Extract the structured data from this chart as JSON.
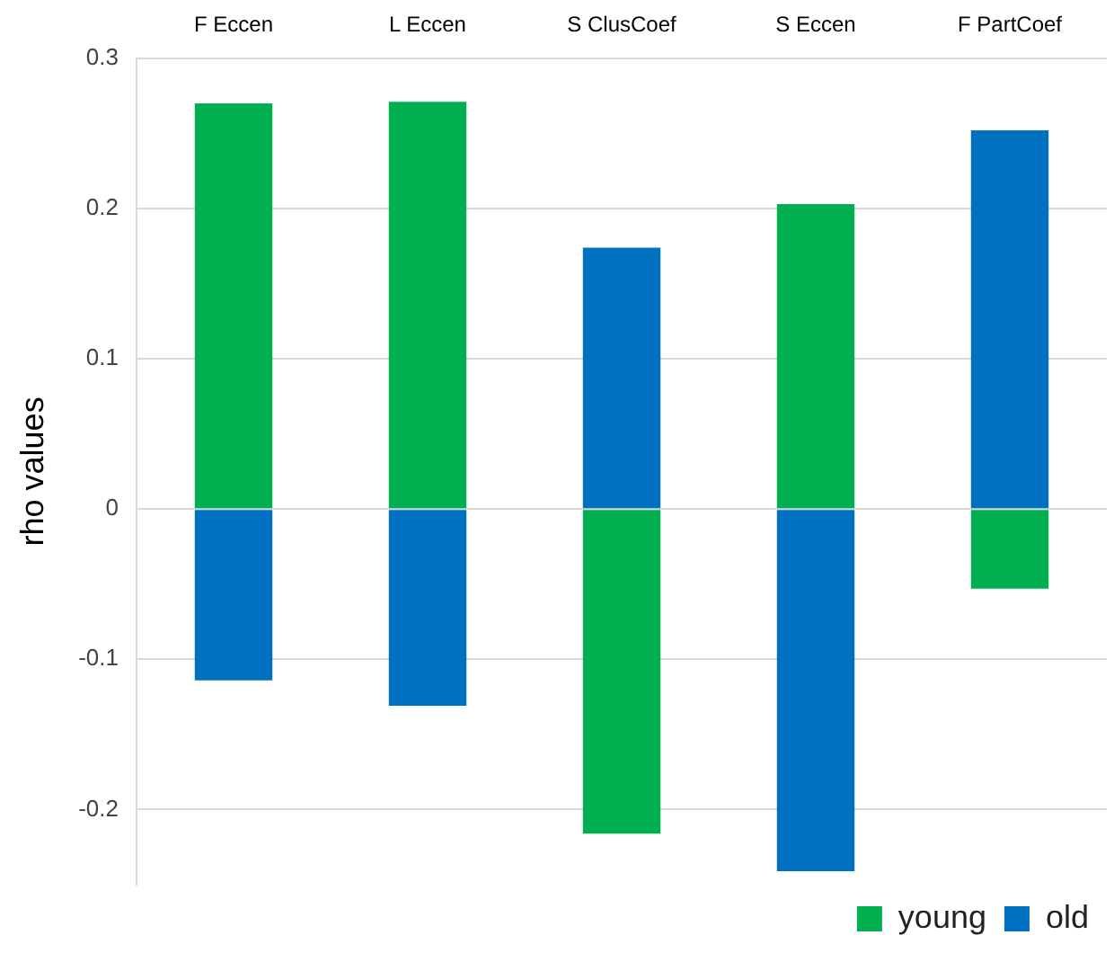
{
  "chart_data": {
    "type": "bar",
    "ylabel": "rho values",
    "categories": [
      "F Eccen",
      "L Eccen",
      "S ClusCoef",
      "S Eccen",
      "F PartCoef"
    ],
    "series": [
      {
        "name": "young",
        "color": "#00b050",
        "values": [
          0.27,
          0.271,
          -0.216,
          0.203,
          -0.053
        ]
      },
      {
        "name": "old",
        "color": "#0070c0",
        "values": [
          -0.114,
          -0.131,
          0.174,
          -0.241,
          0.252
        ]
      }
    ],
    "stacked": true,
    "ylim": [
      -0.25,
      0.3
    ],
    "yticks": [
      -0.2,
      -0.1,
      0,
      0.1,
      0.2,
      0.3
    ],
    "grid": "y",
    "legend": "bottom right"
  }
}
